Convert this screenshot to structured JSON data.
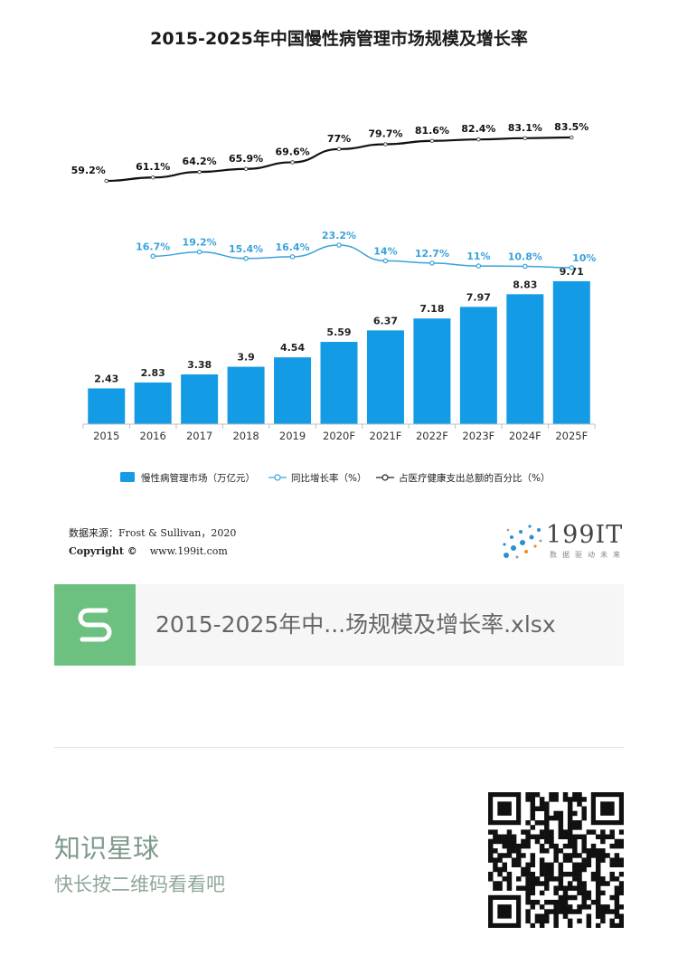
{
  "chart_data": {
    "type": "bar",
    "title": "2015-2025年中国慢性病管理市场规模及增长率",
    "categories": [
      "2015",
      "2016",
      "2017",
      "2018",
      "2019",
      "2020F",
      "2021F",
      "2022F",
      "2023F",
      "2024F",
      "2025F"
    ],
    "series": [
      {
        "name": "慢性病管理市场（万亿元）",
        "type": "bar",
        "color": "#139be6",
        "values": [
          2.43,
          2.83,
          3.38,
          3.9,
          4.54,
          5.59,
          6.37,
          7.18,
          7.97,
          8.83,
          9.71
        ],
        "labels": [
          "2.43",
          "2.83",
          "3.38",
          "3.9",
          "4.54",
          "5.59",
          "6.37",
          "7.18",
          "7.97",
          "8.83",
          "9.71"
        ]
      },
      {
        "name": "同比增长率（%）",
        "type": "line",
        "color": "#3aa2dc",
        "values": [
          null,
          16.7,
          19.2,
          15.4,
          16.4,
          23.2,
          14,
          12.7,
          11,
          10.8,
          10
        ],
        "labels": [
          null,
          "16.7%",
          "19.2%",
          "15.4%",
          "16.4%",
          "23.2%",
          "14%",
          "12.7%",
          "11%",
          "10.8%",
          "10%"
        ]
      },
      {
        "name": "占医疗健康支出总额的百分比（%）",
        "type": "line",
        "color": "#111111",
        "values": [
          59.2,
          61.1,
          64.2,
          65.9,
          69.6,
          77,
          79.7,
          81.6,
          82.4,
          83.1,
          83.5
        ],
        "labels": [
          "59.2%",
          "61.1%",
          "64.2%",
          "65.9%",
          "69.6%",
          "77%",
          "79.7%",
          "81.6%",
          "82.4%",
          "83.1%",
          "83.5%"
        ]
      }
    ],
    "ylim": [
      0,
      10
    ],
    "grid": false,
    "legend_position": "bottom"
  },
  "source": {
    "text": "数据来源：Frost & Sullivan，2020",
    "copyright": "Copyright ©",
    "url": "www.199it.com"
  },
  "logo": {
    "text": "199IT",
    "sub": "数据驱动未来"
  },
  "file": {
    "name": "2015-2025年中...场规模及增长率.xlsx",
    "icon_letter": "S",
    "icon_color": "#6cc181"
  },
  "planet": {
    "title": "知识星球",
    "subtitle": "快长按二维码看看吧"
  },
  "qr": {
    "icon": "qr-code-icon"
  }
}
